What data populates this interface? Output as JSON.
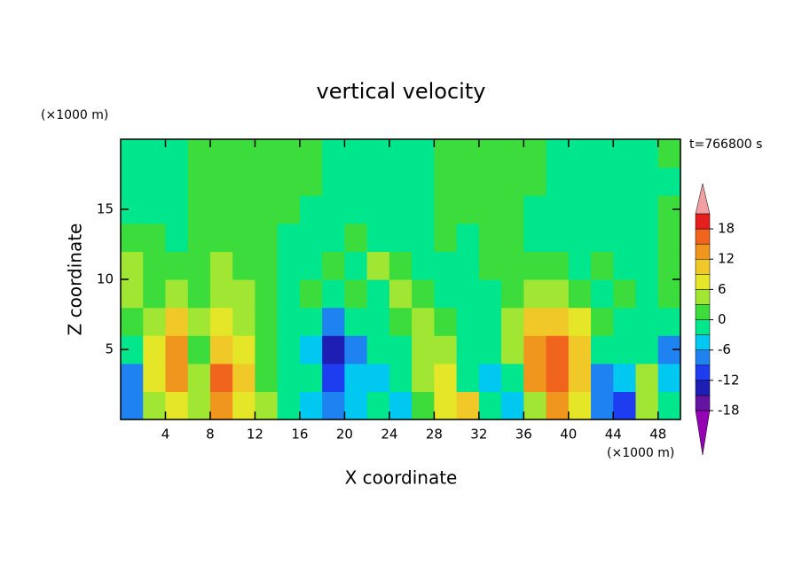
{
  "chart_data": {
    "type": "contour",
    "title": "vertical velocity",
    "xlabel": "X coordinate",
    "ylabel": "Z coordinate",
    "x_unit": "(×1000 m)",
    "y_unit": "(×1000 m)",
    "annotation": "t=766800 s",
    "xlim": [
      0,
      50
    ],
    "ylim": [
      0,
      20
    ],
    "xticks": [
      4,
      8,
      12,
      16,
      20,
      24,
      28,
      32,
      36,
      40,
      44,
      48
    ],
    "yticks": [
      5,
      10,
      15
    ],
    "x": [
      1,
      3,
      5,
      7,
      9,
      11,
      13,
      15,
      17,
      19,
      21,
      23,
      25,
      27,
      29,
      31,
      33,
      35,
      37,
      39,
      41,
      43,
      45,
      47,
      49
    ],
    "z": [
      1,
      3,
      5,
      7,
      9,
      11,
      13,
      15,
      17,
      19
    ],
    "values": [
      [
        -9,
        3,
        8,
        3,
        12,
        8,
        3,
        -3,
        -6,
        -9,
        -6,
        -3,
        -6,
        0,
        6,
        9,
        -3,
        -6,
        3,
        12,
        6,
        -9,
        -12,
        3,
        -3
      ],
      [
        -9,
        6,
        12,
        3,
        15,
        9,
        0,
        -3,
        -3,
        -12,
        -6,
        -6,
        -3,
        3,
        6,
        -3,
        -6,
        -3,
        12,
        15,
        9,
        -9,
        -6,
        3,
        -6
      ],
      [
        -3,
        6,
        12,
        0,
        9,
        6,
        0,
        -3,
        -6,
        -15,
        -9,
        -3,
        -3,
        3,
        3,
        -3,
        -3,
        3,
        12,
        15,
        9,
        -3,
        -3,
        -3,
        -9
      ],
      [
        0,
        3,
        9,
        3,
        6,
        3,
        0,
        -3,
        -3,
        -9,
        -3,
        -3,
        0,
        3,
        0,
        -3,
        -3,
        3,
        9,
        9,
        6,
        0,
        -3,
        -3,
        -3
      ],
      [
        3,
        0,
        3,
        0,
        3,
        3,
        0,
        -3,
        0,
        -3,
        0,
        -3,
        3,
        0,
        -3,
        -3,
        -3,
        0,
        3,
        3,
        0,
        -3,
        0,
        -3,
        0
      ],
      [
        3,
        0,
        0,
        0,
        3,
        0,
        0,
        -3,
        -3,
        0,
        -3,
        3,
        0,
        -3,
        -3,
        -3,
        0,
        0,
        0,
        0,
        -3,
        0,
        -3,
        -3,
        0
      ],
      [
        1,
        1,
        -1,
        1,
        1,
        1,
        1,
        -1,
        -1,
        -1,
        1,
        -1,
        -1,
        -1,
        1,
        -1,
        1,
        1,
        -1,
        -1,
        -1,
        -1,
        -1,
        -1,
        1
      ],
      [
        -1,
        -1,
        -1,
        1,
        1,
        1,
        1,
        1,
        -1,
        -1,
        -1,
        -1,
        -1,
        -1,
        1,
        1,
        1,
        1,
        -1,
        -1,
        -1,
        -1,
        -1,
        -1,
        1
      ],
      [
        -1,
        -1,
        -1,
        1,
        1,
        1,
        1,
        1,
        1,
        -1,
        -1,
        -1,
        -1,
        -1,
        1,
        1,
        1,
        1,
        1,
        -1,
        -1,
        -1,
        -1,
        -1,
        -1
      ],
      [
        -1,
        -1,
        -1,
        1,
        1,
        1,
        1,
        1,
        1,
        -1,
        -1,
        -1,
        -1,
        -1,
        1,
        1,
        1,
        1,
        1,
        -1,
        -1,
        -1,
        -1,
        -1,
        1
      ]
    ],
    "levels": [
      -18,
      -15,
      -12,
      -9,
      -6,
      -3,
      0,
      3,
      6,
      9,
      12,
      15,
      18,
      21
    ],
    "colors": [
      "#9600b4",
      "#6414a0",
      "#1e1eb4",
      "#1e3cf0",
      "#1e82f0",
      "#00c8f0",
      "#00e68c",
      "#3cdc3c",
      "#a0e632",
      "#e6e628",
      "#f0c828",
      "#f0961e",
      "#f0641e",
      "#e61e1e",
      "#f0a0a0"
    ],
    "colorbar_ticks": [
      18,
      12,
      6,
      0,
      -6,
      -12,
      -18
    ]
  }
}
